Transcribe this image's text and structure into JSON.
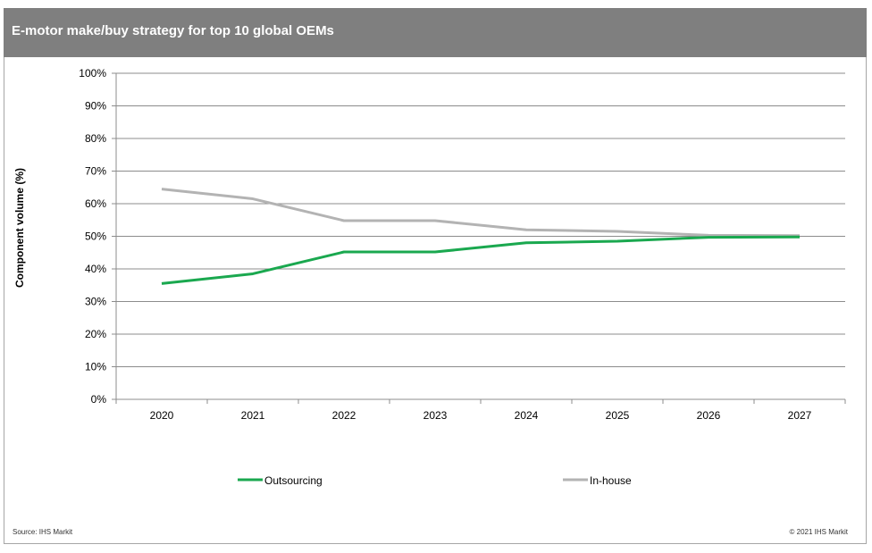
{
  "chart_data": {
    "type": "line",
    "title": "E-motor make/buy strategy for top 10 global OEMs",
    "xlabel": "",
    "ylabel": "Component volume (%)",
    "categories": [
      "2020",
      "2021",
      "2022",
      "2023",
      "2024",
      "2025",
      "2026",
      "2027"
    ],
    "ylim": [
      0,
      100
    ],
    "yticks": [
      0,
      10,
      20,
      30,
      40,
      50,
      60,
      70,
      80,
      90,
      100
    ],
    "ytick_labels": [
      "0%",
      "10%",
      "20%",
      "30%",
      "40%",
      "50%",
      "60%",
      "70%",
      "80%",
      "90%",
      "100%"
    ],
    "grid": true,
    "legend_position": "bottom",
    "series": [
      {
        "name": "Outsourcing",
        "color": "#1aa84f",
        "values": [
          35.5,
          38.5,
          45.2,
          45.2,
          48.0,
          48.5,
          49.7,
          49.8
        ]
      },
      {
        "name": "In-house",
        "color": "#b3b3b3",
        "values": [
          64.5,
          61.5,
          54.8,
          54.8,
          52.0,
          51.5,
          50.3,
          50.2
        ]
      }
    ]
  },
  "footer": {
    "source": "Source: IHS Markit",
    "copyright": "© 2021 IHS Markit"
  }
}
